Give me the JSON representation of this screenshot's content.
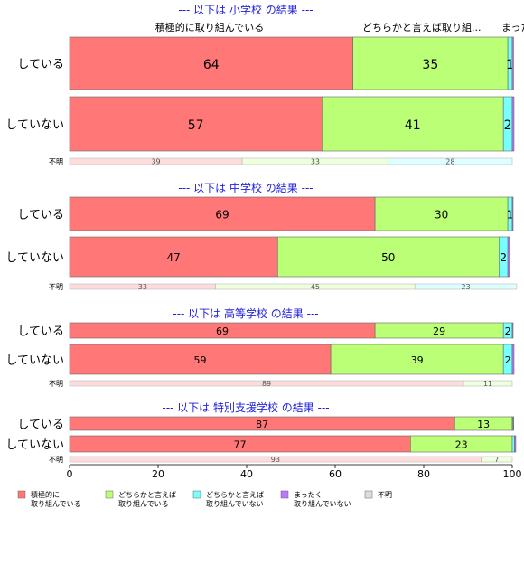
{
  "chart_data": {
    "type": "bar",
    "orientation": "horizontal",
    "stacked": true,
    "xlim": [
      0,
      100
    ],
    "x_ticks": [
      "0",
      "20",
      "40",
      "60",
      "80",
      "100"
    ],
    "top_labels": [
      "積極的に取り組んでいる",
      "どちらかと言えば取り組...",
      "まったく取り組..."
    ],
    "legend": {
      "placement": "bottom-left",
      "items": [
        {
          "line1": "積極的に",
          "line2": "取り組んでいる",
          "color": "#ff7777"
        },
        {
          "line1": "どちらかと言えば",
          "line2": "取り組んでいる",
          "color": "#bbff77"
        },
        {
          "line1": "どちらかと言えば",
          "line2": "取り組んでいない",
          "color": "#77ffff"
        },
        {
          "line1": "まったく",
          "line2": "取り組んでいない",
          "color": "#bb77ff"
        },
        {
          "line1": "不明",
          "line2": "",
          "color": "#dddddd"
        }
      ]
    },
    "panels": [
      {
        "title": "--- 以下は 小学校 の結果 ---",
        "rows": [
          {
            "label": "している",
            "values": [
              64,
              35,
              1,
              0.3,
              0
            ],
            "labels": [
              "64",
              "35",
              "1",
              "",
              ""
            ]
          },
          {
            "label": "していない",
            "values": [
              57,
              41,
              2,
              0.4,
              0
            ],
            "labels": [
              "57",
              "41",
              "2",
              "",
              ""
            ]
          },
          {
            "label": "不明",
            "values": [
              39,
              33,
              28,
              0,
              0
            ],
            "labels": [
              "39",
              "33",
              "28",
              "",
              ""
            ],
            "faint": true
          }
        ]
      },
      {
        "title": "--- 以下は 中学校 の結果 ---",
        "rows": [
          {
            "label": "している",
            "values": [
              69,
              30,
              1,
              0.2,
              0
            ],
            "labels": [
              "69",
              "30",
              "1",
              "",
              ""
            ]
          },
          {
            "label": "していない",
            "values": [
              47,
              50,
              2,
              0.4,
              0
            ],
            "labels": [
              "47",
              "50",
              "2",
              "",
              ""
            ]
          },
          {
            "label": "不明",
            "values": [
              33,
              45,
              23,
              0,
              0
            ],
            "labels": [
              "33",
              "45",
              "23",
              "",
              ""
            ],
            "faint": true
          }
        ]
      },
      {
        "title": "--- 以下は 高等学校 の結果 ---",
        "rows": [
          {
            "label": "している",
            "values": [
              69,
              29,
              2,
              0.2,
              0
            ],
            "labels": [
              "69",
              "29",
              "2",
              "",
              ""
            ]
          },
          {
            "label": "していない",
            "values": [
              59,
              39,
              2,
              0.4,
              0
            ],
            "labels": [
              "59",
              "39",
              "2",
              "",
              ""
            ]
          },
          {
            "label": "不明",
            "values": [
              89,
              11,
              0,
              0,
              0
            ],
            "labels": [
              "89",
              "11",
              "",
              "",
              ""
            ],
            "faint": true
          }
        ]
      },
      {
        "title": "--- 以下は 特別支援学校 の結果 ---",
        "rows": [
          {
            "label": "している",
            "values": [
              87,
              13,
              0.2,
              0.1,
              0
            ],
            "labels": [
              "87",
              "13",
              "",
              "",
              ""
            ]
          },
          {
            "label": "していない",
            "values": [
              77,
              23,
              0.5,
              0.3,
              0
            ],
            "labels": [
              "77",
              "23",
              "",
              "",
              ""
            ]
          },
          {
            "label": "不明",
            "values": [
              93,
              7,
              0,
              0,
              0
            ],
            "labels": [
              "93",
              "7",
              "",
              "",
              ""
            ],
            "faint": true
          }
        ]
      }
    ]
  }
}
